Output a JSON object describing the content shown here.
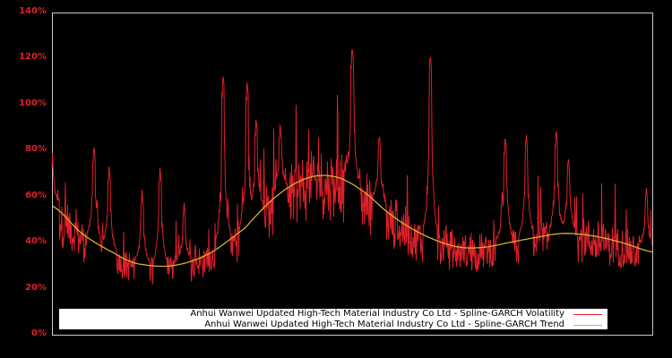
{
  "chart_data": {
    "type": "line",
    "title": "",
    "xlabel": "",
    "ylabel": "",
    "ylim": [
      0,
      140
    ],
    "yticks": [
      "0%",
      "20%",
      "40%",
      "60%",
      "80%",
      "100%",
      "120%",
      "140%"
    ],
    "grid": false,
    "legend_position": "lower-center",
    "colors": {
      "background": "#000000",
      "axis_tick_text": "#e0202a",
      "frame": "#c8c8c8",
      "volatility": "#e0202a",
      "trend": "#d4b030",
      "legend_bg": "#ffffff"
    },
    "series": [
      {
        "name": "Anhui Wanwei Updated High-Tech Material Industry Co Ltd - Spline-GARCH Volatility",
        "type": "noisy",
        "note": "approximate envelope: base level follows trend with noise; notable spikes listed as [x_fraction, value_pct]",
        "spikes": [
          [
            0.0,
            82
          ],
          [
            0.07,
            83
          ],
          [
            0.095,
            74
          ],
          [
            0.15,
            63
          ],
          [
            0.18,
            73
          ],
          [
            0.22,
            58
          ],
          [
            0.285,
            114
          ],
          [
            0.325,
            111
          ],
          [
            0.34,
            95
          ],
          [
            0.38,
            92
          ],
          [
            0.5,
            126
          ],
          [
            0.545,
            88
          ],
          [
            0.63,
            123
          ],
          [
            0.75,
            62
          ],
          [
            0.755,
            87
          ],
          [
            0.79,
            88
          ],
          [
            0.84,
            90
          ],
          [
            0.86,
            78
          ],
          [
            0.99,
            65
          ]
        ]
      },
      {
        "name": "Anhui Wanwei Updated High-Tech Material Industry Co Ltd - Spline-GARCH Trend",
        "type": "smooth",
        "x": [
          0.0,
          0.05,
          0.1,
          0.14,
          0.2,
          0.26,
          0.32,
          0.36,
          0.4,
          0.44,
          0.48,
          0.52,
          0.56,
          0.6,
          0.64,
          0.68,
          0.72,
          0.76,
          0.8,
          0.85,
          0.9,
          0.95,
          1.0
        ],
        "values": [
          56,
          44,
          36,
          31,
          30,
          35,
          46,
          57,
          65,
          69,
          68,
          62,
          53,
          46,
          41,
          38,
          38,
          40,
          42,
          44,
          43,
          40,
          36
        ]
      }
    ]
  },
  "legend": {
    "volatility_label": "Anhui Wanwei Updated High-Tech Material Industry Co Ltd - Spline-GARCH Volatility",
    "trend_label": "Anhui Wanwei Updated High-Tech Material Industry Co Ltd - Spline-GARCH Trend"
  }
}
